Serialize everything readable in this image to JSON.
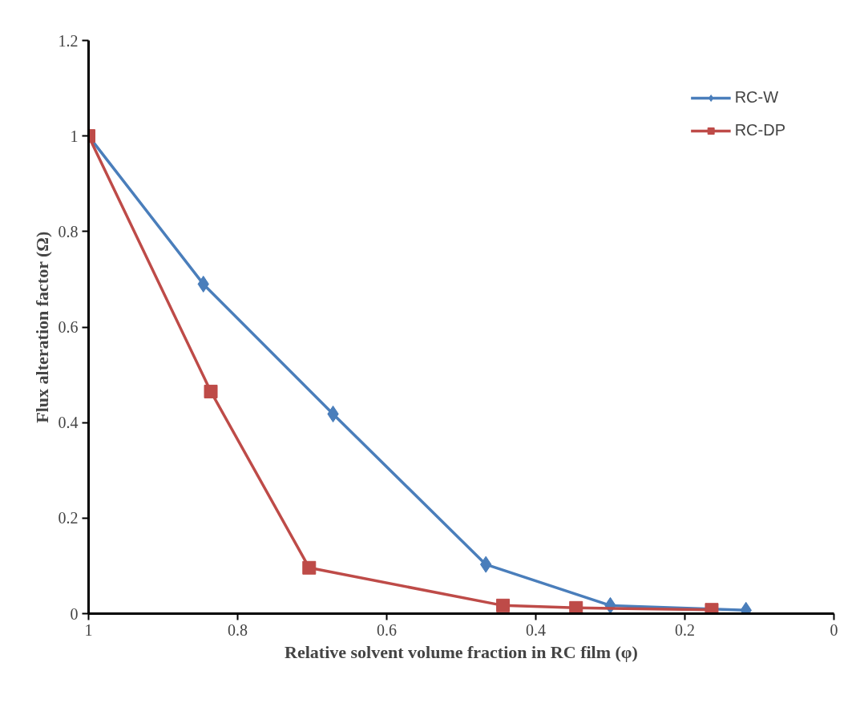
{
  "chart_data": {
    "type": "line",
    "xlabel": "Relative solvent volume fraction in RC film (φ)",
    "ylabel": "Flux alteration factor (Ω)",
    "xlim": [
      1,
      0
    ],
    "ylim": [
      0,
      1.2
    ],
    "xticks": [
      1,
      0.8,
      0.6,
      0.4,
      0.2,
      0
    ],
    "yticks": [
      0,
      0.2,
      0.4,
      0.6,
      0.8,
      1,
      1.2
    ],
    "grid": false,
    "legend": "top right",
    "series": [
      {
        "name": "RC-W",
        "color": "#4a7ebb",
        "marker": "diamond",
        "x": [
          1,
          0.846,
          0.672,
          0.467,
          0.3,
          0.118
        ],
        "values": [
          1,
          0.69,
          0.418,
          0.103,
          0.017,
          0.007
        ]
      },
      {
        "name": "RC-DP",
        "color": "#be4b48",
        "marker": "square",
        "x": [
          1,
          0.836,
          0.704,
          0.444,
          0.346,
          0.164
        ],
        "values": [
          1,
          0.465,
          0.096,
          0.017,
          0.012,
          0.008
        ]
      }
    ]
  }
}
